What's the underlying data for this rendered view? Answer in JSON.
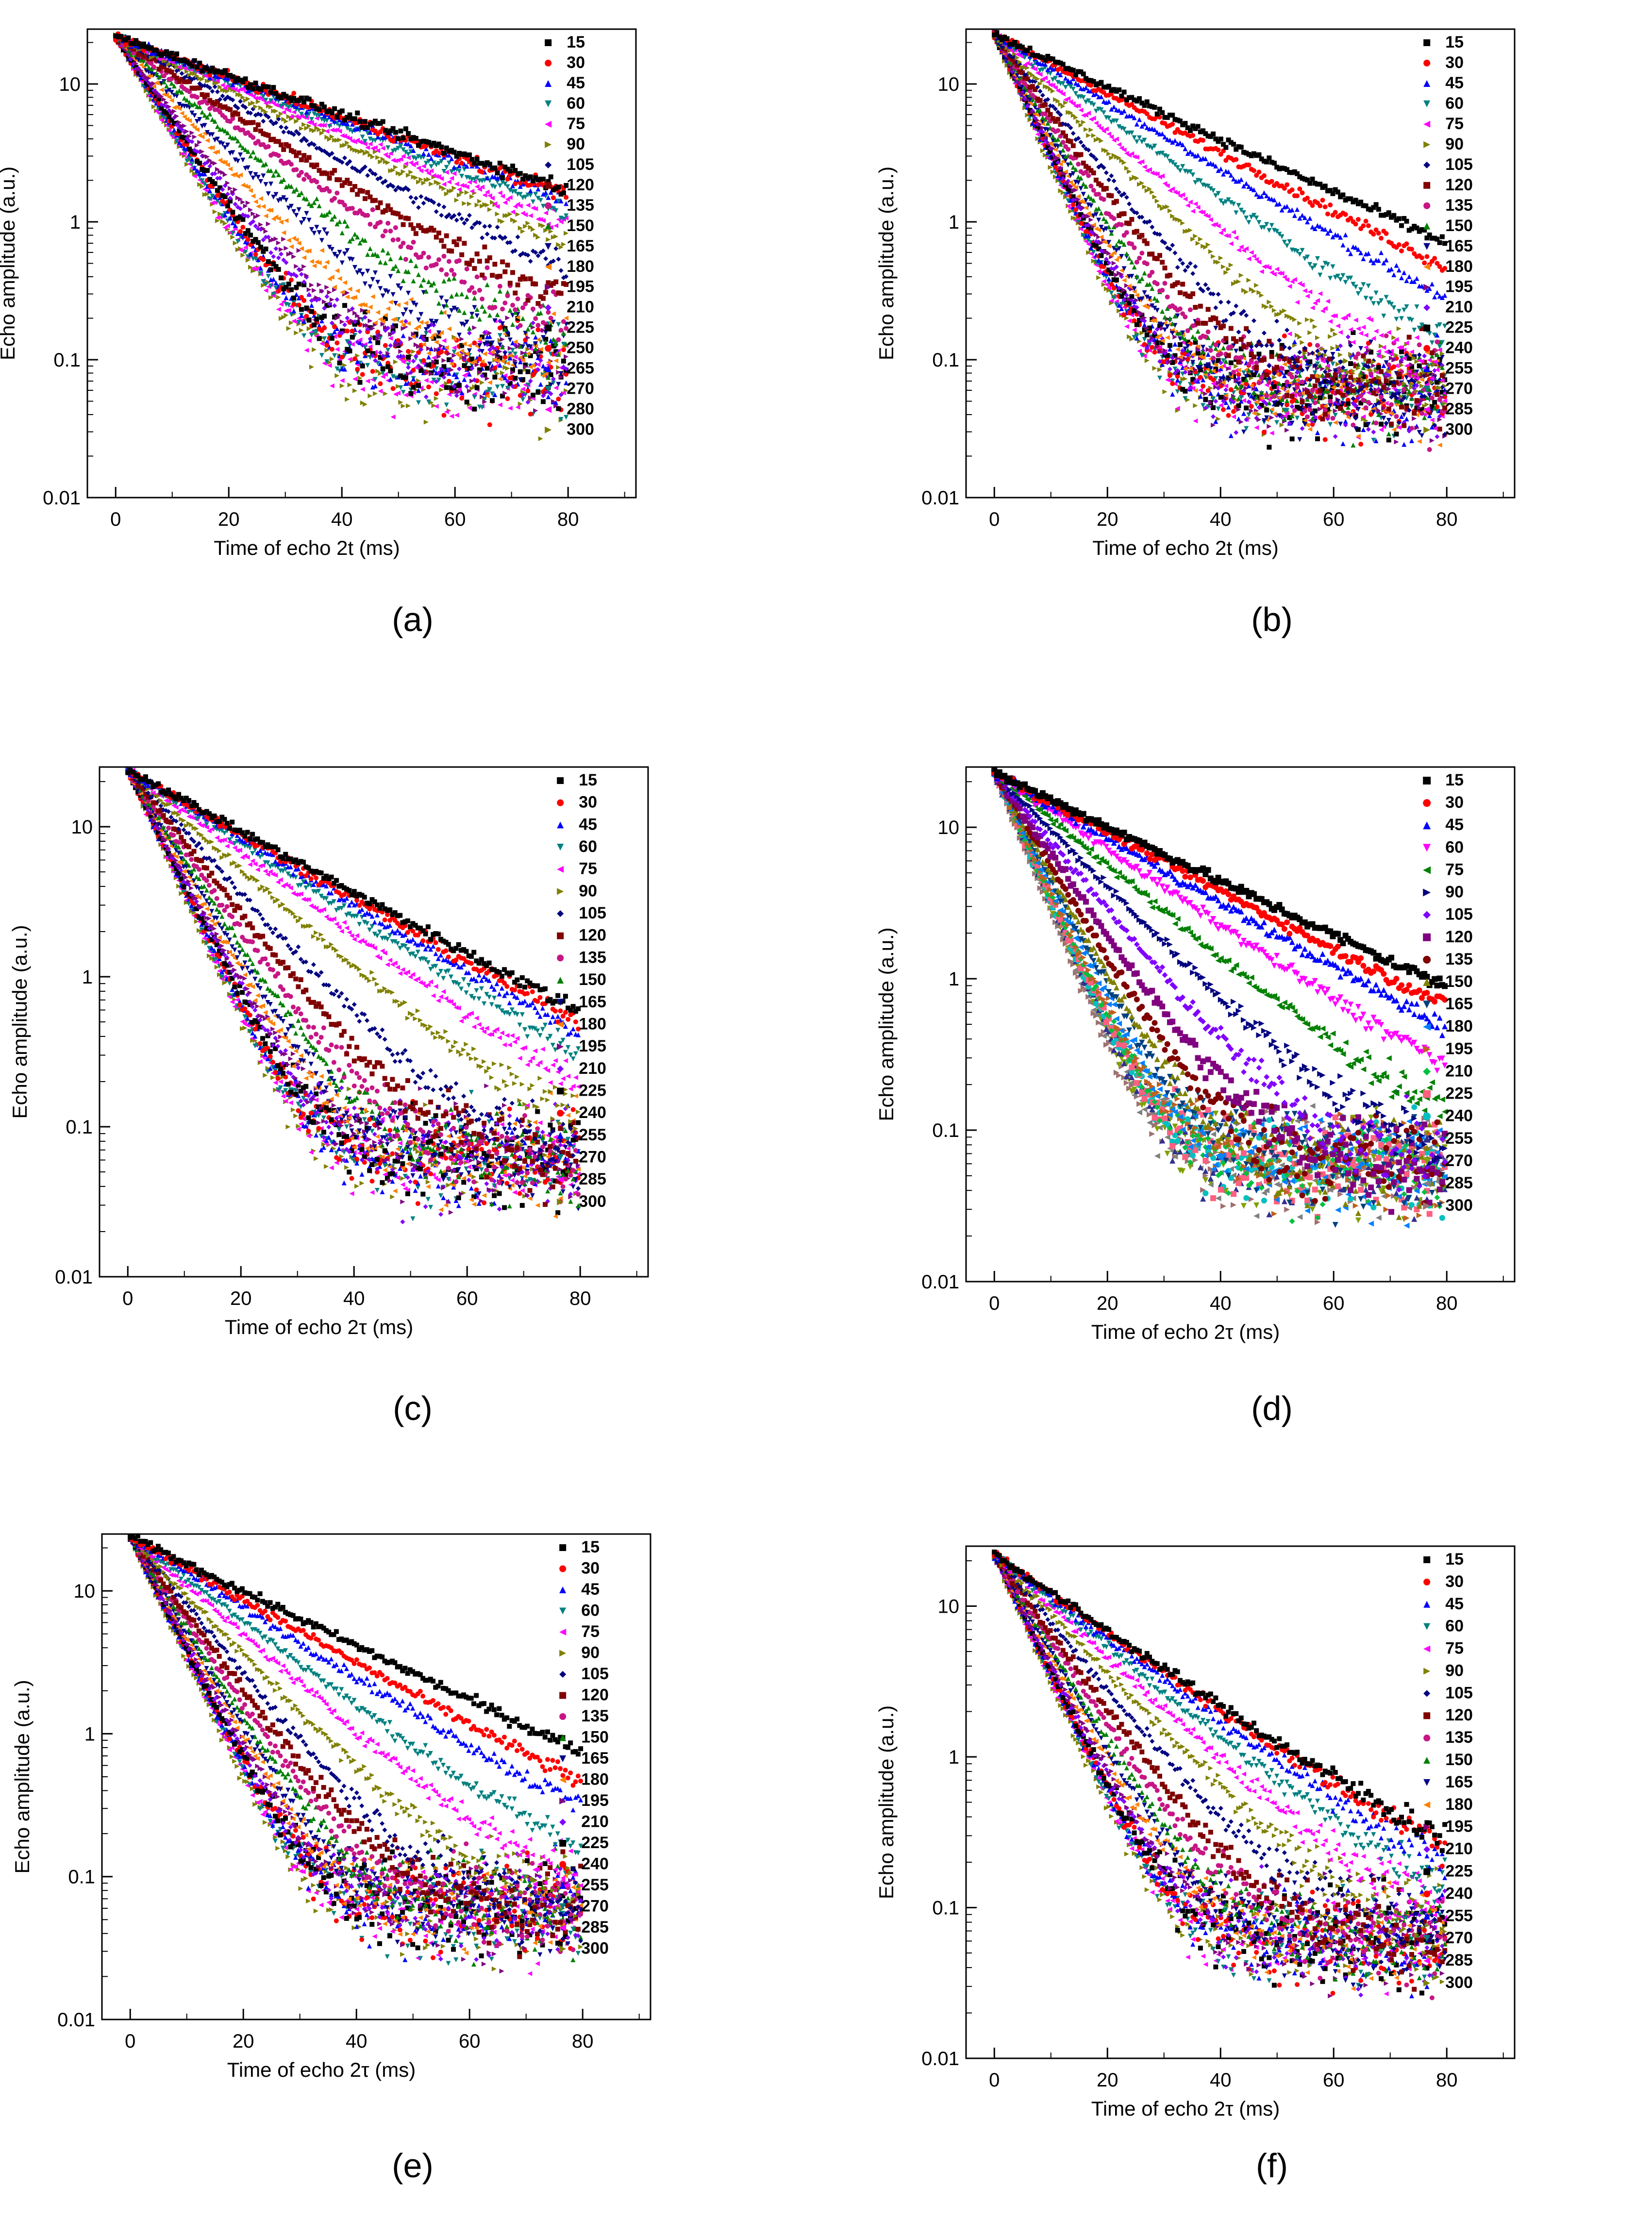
{
  "figure": {
    "panel_labels": [
      "(a)",
      "(b)",
      "(c)",
      "(d)",
      "(e)",
      "(f)"
    ]
  },
  "colors": {
    "palette_standard": [
      "#000000",
      "#ff0000",
      "#0000ff",
      "#008080",
      "#ff00ff",
      "#808000",
      "#000080",
      "#800000",
      "#c71585",
      "#008000",
      "#00008b",
      "#ff8000",
      "#800080",
      "#8000ff",
      "#000000",
      "#ff0000",
      "#0000ff",
      "#008080",
      "#ff00ff",
      "#808000"
    ],
    "palette_d": [
      "#000000",
      "#ff0000",
      "#0000ff",
      "#ff00ff",
      "#008000",
      "#000080",
      "#8000ff",
      "#800080",
      "#800000",
      "#808000",
      "#004080",
      "#0080ff",
      "#c06020",
      "#00c040",
      "#ff6080",
      "#00c0c0",
      "#303090",
      "#80a000",
      "#808080",
      "#a07070"
    ]
  },
  "chart_data": [
    {
      "panel": "a",
      "type": "scatter",
      "yscale": "log",
      "xlabel": "Time of echo 2t (ms)",
      "ylabel": "Echo amplitude (a.u.)",
      "xlim": [
        -5,
        92
      ],
      "ylim": [
        0.01,
        25
      ],
      "xticks": [
        0,
        20,
        40,
        60,
        80
      ],
      "xtick_labels": [
        "0",
        "20",
        "40",
        "60",
        "80"
      ],
      "yticks": [
        0.01,
        0.1,
        1,
        10
      ],
      "ytick_labels": [
        "0.01",
        "0.1",
        "1",
        "10"
      ],
      "legend": [
        "15",
        "30",
        "45",
        "60",
        "75",
        "90",
        "105",
        "120",
        "135",
        "150",
        "165",
        "180",
        "195",
        "210",
        "225",
        "250",
        "265",
        "270",
        "280",
        "300"
      ],
      "a0": 22,
      "T2": [
        30,
        29,
        28,
        26,
        24,
        22,
        19,
        16,
        14,
        12,
        10.5,
        9,
        8,
        7.5,
        7,
        6.8,
        6.5,
        6.3,
        6.1,
        6
      ],
      "noise_floor": [
        0.2,
        0.2,
        0.19,
        0.18,
        0.17,
        0.16,
        0.15,
        0.14,
        0.13,
        0.12,
        0.11,
        0.1,
        0.095,
        0.09,
        0.085,
        0.08,
        0.08,
        0.08,
        0.075,
        0.07
      ]
    },
    {
      "panel": "b",
      "type": "scatter",
      "yscale": "log",
      "xlabel": "Time of echo 2t (ms)",
      "ylabel": "Echo amplitude (a.u.)",
      "xlim": [
        -5,
        92
      ],
      "ylim": [
        0.01,
        25
      ],
      "xticks": [
        0,
        20,
        40,
        60,
        80
      ],
      "xtick_labels": [
        "0",
        "20",
        "40",
        "60",
        "80"
      ],
      "yticks": [
        0.01,
        0.1,
        1,
        10
      ],
      "ytick_labels": [
        "0.01",
        "0.1",
        "1",
        "10"
      ],
      "legend": [
        "15",
        "30",
        "45",
        "60",
        "75",
        "90",
        "105",
        "120",
        "135",
        "150",
        "165",
        "180",
        "195",
        "210",
        "225",
        "240",
        "255",
        "270",
        "285",
        "300"
      ],
      "a0": 23,
      "T2": [
        22.5,
        20,
        17.5,
        14.5,
        12,
        10.2,
        8.4,
        7.4,
        6.7,
        6.2,
        5.8,
        5.5,
        5.3,
        5.1,
        5,
        4.9,
        4.8,
        4.7,
        4.6,
        4.5
      ],
      "noise_floor": [
        0.05,
        0.05,
        0.05,
        0.06,
        0.06,
        0.06,
        0.06,
        0.06,
        0.06,
        0.06,
        0.06,
        0.06,
        0.06,
        0.06,
        0.06,
        0.06,
        0.06,
        0.06,
        0.06,
        0.06
      ]
    },
    {
      "panel": "c",
      "type": "scatter",
      "yscale": "log",
      "xlabel": "Time of echo 2τ (ms)",
      "ylabel": "Echo amplitude (a.u.)",
      "xlim": [
        -5,
        92
      ],
      "ylim": [
        0.01,
        25
      ],
      "xticks": [
        0,
        20,
        40,
        60,
        80
      ],
      "xtick_labels": [
        "0",
        "20",
        "40",
        "60",
        "80"
      ],
      "yticks": [
        0.01,
        0.1,
        1,
        10
      ],
      "ytick_labels": [
        "0.01",
        "0.1",
        "1",
        "10"
      ],
      "legend": [
        "15",
        "30",
        "45",
        "60",
        "75",
        "90",
        "105",
        "120",
        "135",
        "150",
        "165",
        "180",
        "195",
        "210",
        "225",
        "240",
        "255",
        "270",
        "285",
        "300"
      ],
      "a0": 24,
      "T2": [
        21,
        20,
        19,
        17.5,
        15.5,
        13,
        10.5,
        9,
        8,
        7.3,
        6.8,
        6.4,
        6.1,
        5.9,
        5.7,
        5.5,
        5.4,
        5.3,
        5.2,
        5.1
      ],
      "noise_floor": [
        0.06,
        0.06,
        0.06,
        0.06,
        0.06,
        0.06,
        0.06,
        0.06,
        0.06,
        0.06,
        0.06,
        0.06,
        0.06,
        0.06,
        0.06,
        0.06,
        0.06,
        0.06,
        0.06,
        0.06
      ]
    },
    {
      "panel": "d",
      "type": "scatter",
      "yscale": "log",
      "xlabel": "Time of echo 2τ (ms)",
      "ylabel": "Echo amplitude (a.u.)",
      "xlim": [
        -5,
        92
      ],
      "ylim": [
        0.01,
        25
      ],
      "xticks": [
        0,
        20,
        40,
        60,
        80
      ],
      "xtick_labels": [
        "0",
        "20",
        "40",
        "60",
        "80"
      ],
      "yticks": [
        0.01,
        0.1,
        1,
        10
      ],
      "ytick_labels": [
        "0.01",
        "0.1",
        "1",
        "10"
      ],
      "legend": [
        "15",
        "30",
        "45",
        "60",
        "75",
        "90",
        "105",
        "120",
        "135",
        "150",
        "165",
        "180",
        "195",
        "210",
        "225",
        "240",
        "255",
        "270",
        "285",
        "300"
      ],
      "a0": 23,
      "T2": [
        24,
        22,
        20,
        17,
        14,
        11.5,
        9.5,
        8,
        7,
        6.4,
        6,
        5.7,
        5.5,
        5.3,
        5.2,
        5.1,
        5,
        4.9,
        4.8,
        4.7
      ],
      "noise_floor": [
        0.06,
        0.06,
        0.06,
        0.06,
        0.06,
        0.06,
        0.06,
        0.06,
        0.06,
        0.06,
        0.06,
        0.06,
        0.06,
        0.06,
        0.06,
        0.06,
        0.06,
        0.06,
        0.06,
        0.06
      ]
    },
    {
      "panel": "e",
      "type": "scatter",
      "yscale": "log",
      "xlabel": "Time of echo 2τ (ms)",
      "ylabel": "Echo amplitude (a.u.)",
      "xlim": [
        -5,
        92
      ],
      "ylim": [
        0.01,
        25
      ],
      "xticks": [
        0,
        20,
        40,
        60,
        80
      ],
      "xtick_labels": [
        "0",
        "20",
        "40",
        "60",
        "80"
      ],
      "yticks": [
        0.01,
        0.1,
        1,
        10
      ],
      "ytick_labels": [
        "0.01",
        "0.1",
        "1",
        "10"
      ],
      "legend": [
        "15",
        "30",
        "45",
        "60",
        "75",
        "90",
        "105",
        "120",
        "135",
        "150",
        "165",
        "180",
        "195",
        "210",
        "225",
        "240",
        "255",
        "270",
        "285",
        "300"
      ],
      "a0": 24,
      "T2": [
        22.5,
        19.5,
        17.5,
        14.5,
        12.5,
        10.5,
        9,
        8,
        7.3,
        6.8,
        6.4,
        6.1,
        5.9,
        5.7,
        5.5,
        5.4,
        5.3,
        5.2,
        5.1,
        5
      ],
      "noise_floor": [
        0.06,
        0.06,
        0.06,
        0.06,
        0.06,
        0.06,
        0.06,
        0.06,
        0.06,
        0.06,
        0.06,
        0.06,
        0.06,
        0.06,
        0.06,
        0.06,
        0.06,
        0.06,
        0.06,
        0.06
      ]
    },
    {
      "panel": "f",
      "type": "scatter",
      "yscale": "log",
      "xlabel": "Time of echo 2τ (ms)",
      "ylabel": "Echo amplitude (a.u.)",
      "xlim": [
        -5,
        92
      ],
      "ylim": [
        0.01,
        25
      ],
      "xticks": [
        0,
        20,
        40,
        60,
        80
      ],
      "xtick_labels": [
        "0",
        "20",
        "40",
        "60",
        "80"
      ],
      "yticks": [
        0.01,
        0.1,
        1,
        10
      ],
      "ytick_labels": [
        "0.01",
        "0.1",
        "1",
        "10"
      ],
      "legend": [
        "15",
        "30",
        "45",
        "60",
        "75",
        "90",
        "105",
        "120",
        "135",
        "150",
        "165",
        "180",
        "195",
        "210",
        "225",
        "240",
        "255",
        "270",
        "285",
        "300"
      ],
      "a0": 22,
      "T2": [
        17,
        16.5,
        15.5,
        14,
        12.5,
        11,
        9.5,
        8.4,
        7.6,
        7,
        6.6,
        6.3,
        6,
        5.8,
        5.6,
        5.5,
        5.4,
        5.3,
        5.2,
        5.1
      ],
      "noise_floor": [
        0.09,
        0.09,
        0.08,
        0.08,
        0.07,
        0.07,
        0.07,
        0.06,
        0.06,
        0.06,
        0.06,
        0.06,
        0.06,
        0.06,
        0.06,
        0.06,
        0.06,
        0.06,
        0.06,
        0.06
      ]
    }
  ]
}
